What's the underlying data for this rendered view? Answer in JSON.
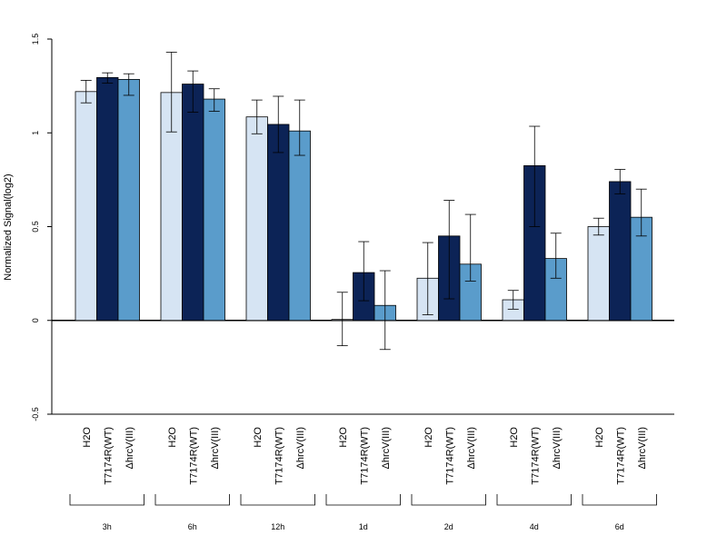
{
  "chart_data": {
    "type": "bar",
    "title": "",
    "ylabel": "Normalized Signal(log2)",
    "xlabel": "",
    "ylim": [
      -0.5,
      1.5
    ],
    "yticks": [
      "-0.5",
      "0",
      "0.5",
      "1",
      "1.5"
    ],
    "groups": [
      "3h",
      "6h",
      "12h",
      "1d",
      "2d",
      "4d",
      "6d"
    ],
    "series": [
      {
        "name": "H2O",
        "color": "#d6e4f3",
        "values": [
          1.22,
          1.215,
          1.085,
          0.005,
          0.225,
          0.11,
          0.5
        ],
        "err_low": [
          1.16,
          1.005,
          0.995,
          -0.135,
          0.03,
          0.06,
          0.455
        ],
        "err_high": [
          1.28,
          1.43,
          1.175,
          0.15,
          0.415,
          0.16,
          0.545
        ]
      },
      {
        "name": "T7174R(WT)",
        "color": "#0c2356",
        "values": [
          1.295,
          1.26,
          1.045,
          0.255,
          0.45,
          0.825,
          0.74
        ],
        "err_low": [
          1.265,
          1.11,
          0.895,
          0.105,
          0.115,
          0.5,
          0.675
        ],
        "err_high": [
          1.32,
          1.33,
          1.195,
          0.42,
          0.64,
          1.035,
          0.805
        ]
      },
      {
        "name": "ΔhrcV(III)",
        "color": "#5a9ccb",
        "values": [
          1.285,
          1.18,
          1.01,
          0.08,
          0.3,
          0.33,
          0.55
        ],
        "err_low": [
          1.2,
          1.115,
          0.88,
          -0.155,
          0.21,
          0.225,
          0.45
        ],
        "err_high": [
          1.315,
          1.235,
          1.175,
          0.265,
          0.565,
          0.465,
          0.7
        ]
      }
    ],
    "grid": false,
    "legend": "none"
  }
}
